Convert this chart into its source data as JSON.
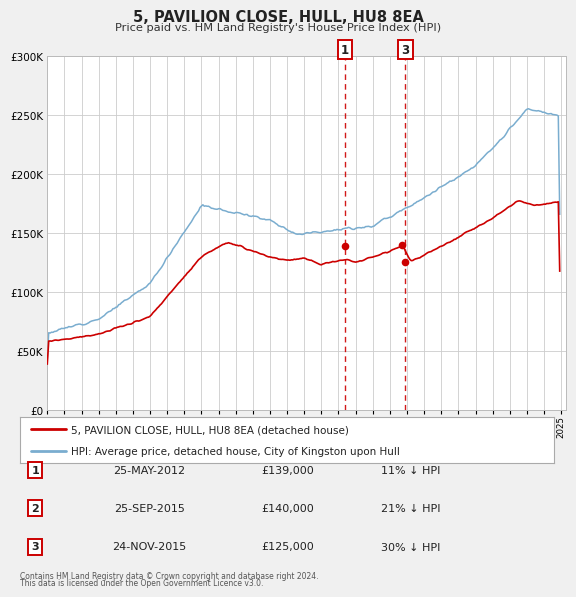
{
  "title": "5, PAVILION CLOSE, HULL, HU8 8EA",
  "subtitle": "Price paid vs. HM Land Registry's House Price Index (HPI)",
  "legend_line1": "5, PAVILION CLOSE, HULL, HU8 8EA (detached house)",
  "legend_line2": "HPI: Average price, detached house, City of Kingston upon Hull",
  "footer1": "Contains HM Land Registry data © Crown copyright and database right 2024.",
  "footer2": "This data is licensed under the Open Government Licence v3.0.",
  "price_color": "#cc0000",
  "hpi_color": "#7aadcf",
  "background_color": "#f0f0f0",
  "plot_bg_color": "#ffffff",
  "grid_color": "#cccccc",
  "ylim": [
    0,
    300000
  ],
  "yticks": [
    0,
    50000,
    100000,
    150000,
    200000,
    250000,
    300000
  ],
  "xlim_start": 1995.0,
  "xlim_end": 2025.3,
  "vline1_x": 2012.38,
  "vline3_x": 2015.9,
  "transactions": [
    {
      "num": 1,
      "date_label": "25-MAY-2012",
      "date_x": 2012.38,
      "price": 139000,
      "pct": "11% ↓ HPI"
    },
    {
      "num": 2,
      "date_label": "25-SEP-2015",
      "date_x": 2015.73,
      "price": 140000,
      "pct": "21% ↓ HPI"
    },
    {
      "num": 3,
      "date_label": "24-NOV-2015",
      "date_x": 2015.9,
      "price": 125000,
      "pct": "30% ↓ HPI"
    }
  ],
  "rows": [
    {
      "num": "1",
      "date": "25-MAY-2012",
      "price": "£139,000",
      "pct": "11% ↓ HPI"
    },
    {
      "num": "2",
      "date": "25-SEP-2015",
      "price": "£140,000",
      "pct": "21% ↓ HPI"
    },
    {
      "num": "3",
      "date": "24-NOV-2015",
      "price": "£125,000",
      "pct": "30% ↓ HPI"
    }
  ]
}
